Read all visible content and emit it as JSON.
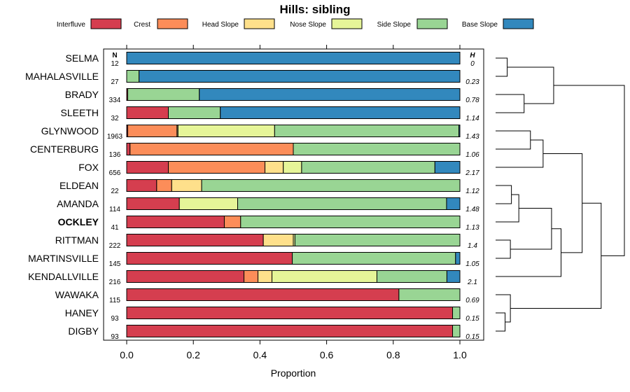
{
  "chart_data": {
    "type": "bar",
    "stacked": true,
    "orientation": "horizontal",
    "title": "Hills: sibling",
    "xlabel": "Proportion",
    "xlim": [
      0,
      1
    ],
    "xticks": [
      "0.0",
      "0.2",
      "0.4",
      "0.6",
      "0.8",
      "1.0"
    ],
    "n_header": "N",
    "h_header": "H",
    "highlight": "OCKLEY",
    "legend": [
      {
        "name": "Interfluve",
        "color": "#d53e4f"
      },
      {
        "name": "Crest",
        "color": "#fc8d59"
      },
      {
        "name": "Head Slope",
        "color": "#fee08b"
      },
      {
        "name": "Nose Slope",
        "color": "#e6f598"
      },
      {
        "name": "Side Slope",
        "color": "#99d594"
      },
      {
        "name": "Base Slope",
        "color": "#3288bd"
      }
    ],
    "rows": [
      {
        "label": "SELMA",
        "n": "12",
        "h": "0",
        "values": [
          0,
          0,
          0,
          0,
          0,
          1.0
        ]
      },
      {
        "label": "MAHALASVILLE",
        "n": "27",
        "h": "0.23",
        "values": [
          0,
          0,
          0,
          0,
          0.037,
          0.963
        ]
      },
      {
        "label": "BRADY",
        "n": "334",
        "h": "0.78",
        "values": [
          0.003,
          0,
          0,
          0,
          0.215,
          0.782
        ]
      },
      {
        "label": "SLEETH",
        "n": "32",
        "h": "1.14",
        "values": [
          0.125,
          0,
          0,
          0,
          0.156,
          0.719
        ]
      },
      {
        "label": "GLYNWOOD",
        "n": "1963",
        "h": "1.43",
        "values": [
          0.003,
          0.148,
          0.003,
          0.29,
          0.553,
          0.003
        ]
      },
      {
        "label": "CENTERBURG",
        "n": "136",
        "h": "1.06",
        "values": [
          0.01,
          0.49,
          0,
          0,
          0.5,
          0
        ]
      },
      {
        "label": "FOX",
        "n": "656",
        "h": "2.17",
        "values": [
          0.125,
          0.29,
          0.055,
          0.055,
          0.4,
          0.075
        ]
      },
      {
        "label": "ELDEAN",
        "n": "22",
        "h": "1.12",
        "values": [
          0.09,
          0.045,
          0.09,
          0,
          0.775,
          0
        ]
      },
      {
        "label": "AMANDA",
        "n": "114",
        "h": "1.48",
        "values": [
          0.158,
          0,
          0,
          0.175,
          0.627,
          0.04
        ]
      },
      {
        "label": "OCKLEY",
        "n": "41",
        "h": "1.13",
        "values": [
          0.293,
          0.049,
          0,
          0,
          0.658,
          0
        ]
      },
      {
        "label": "RITTMAN",
        "n": "222",
        "h": "1.4",
        "values": [
          0.41,
          0,
          0.09,
          0.005,
          0.495,
          0
        ]
      },
      {
        "label": "MARTINSVILLE",
        "n": "145",
        "h": "1.05",
        "values": [
          0.497,
          0,
          0,
          0,
          0.49,
          0.013
        ]
      },
      {
        "label": "KENDALLVILLE",
        "n": "216",
        "h": "2.1",
        "values": [
          0.352,
          0.042,
          0.042,
          0.315,
          0.21,
          0.039
        ]
      },
      {
        "label": "WAWAKA",
        "n": "115",
        "h": "0.69",
        "values": [
          0.817,
          0,
          0,
          0,
          0.183,
          0
        ]
      },
      {
        "label": "HANEY",
        "n": "93",
        "h": "0.15",
        "values": [
          0.978,
          0,
          0,
          0,
          0.022,
          0
        ]
      },
      {
        "label": "DIGBY",
        "n": "93",
        "h": "0.15",
        "values": [
          0.978,
          0,
          0,
          0,
          0.022,
          0
        ]
      }
    ],
    "dendrogram": [
      {
        "a": "SELMA",
        "b": "MAHALASVILLE",
        "height": 0.11
      },
      {
        "a": "BRADY",
        "b": "SLEETH",
        "height": 0.27
      },
      {
        "a": "c0",
        "b": "c1",
        "height": 0.55
      },
      {
        "a": "GLYNWOOD",
        "b": "CENTERBURG",
        "height": 0.33
      },
      {
        "a": "c3",
        "b": "FOX",
        "height": 0.45
      },
      {
        "a": "ELDEAN",
        "b": "AMANDA",
        "height": 0.15
      },
      {
        "a": "c5",
        "b": "OCKLEY",
        "height": 0.22
      },
      {
        "a": "RITTMAN",
        "b": "MARTINSVILLE",
        "height": 0.14
      },
      {
        "a": "c6",
        "b": "c7",
        "height": 0.53
      },
      {
        "a": "c8",
        "b": "KENDALLVILLE",
        "height": 0.62
      },
      {
        "a": "c4",
        "b": "c9",
        "height": 0.82
      },
      {
        "a": "HANEY",
        "b": "DIGBY",
        "height": 0.09
      },
      {
        "a": "WAWAKA",
        "b": "c11",
        "height": 0.14
      },
      {
        "a": "c10",
        "b": "c12",
        "height": 1.0
      },
      {
        "a": "c2",
        "b": "c13",
        "height": 1.22
      }
    ]
  }
}
